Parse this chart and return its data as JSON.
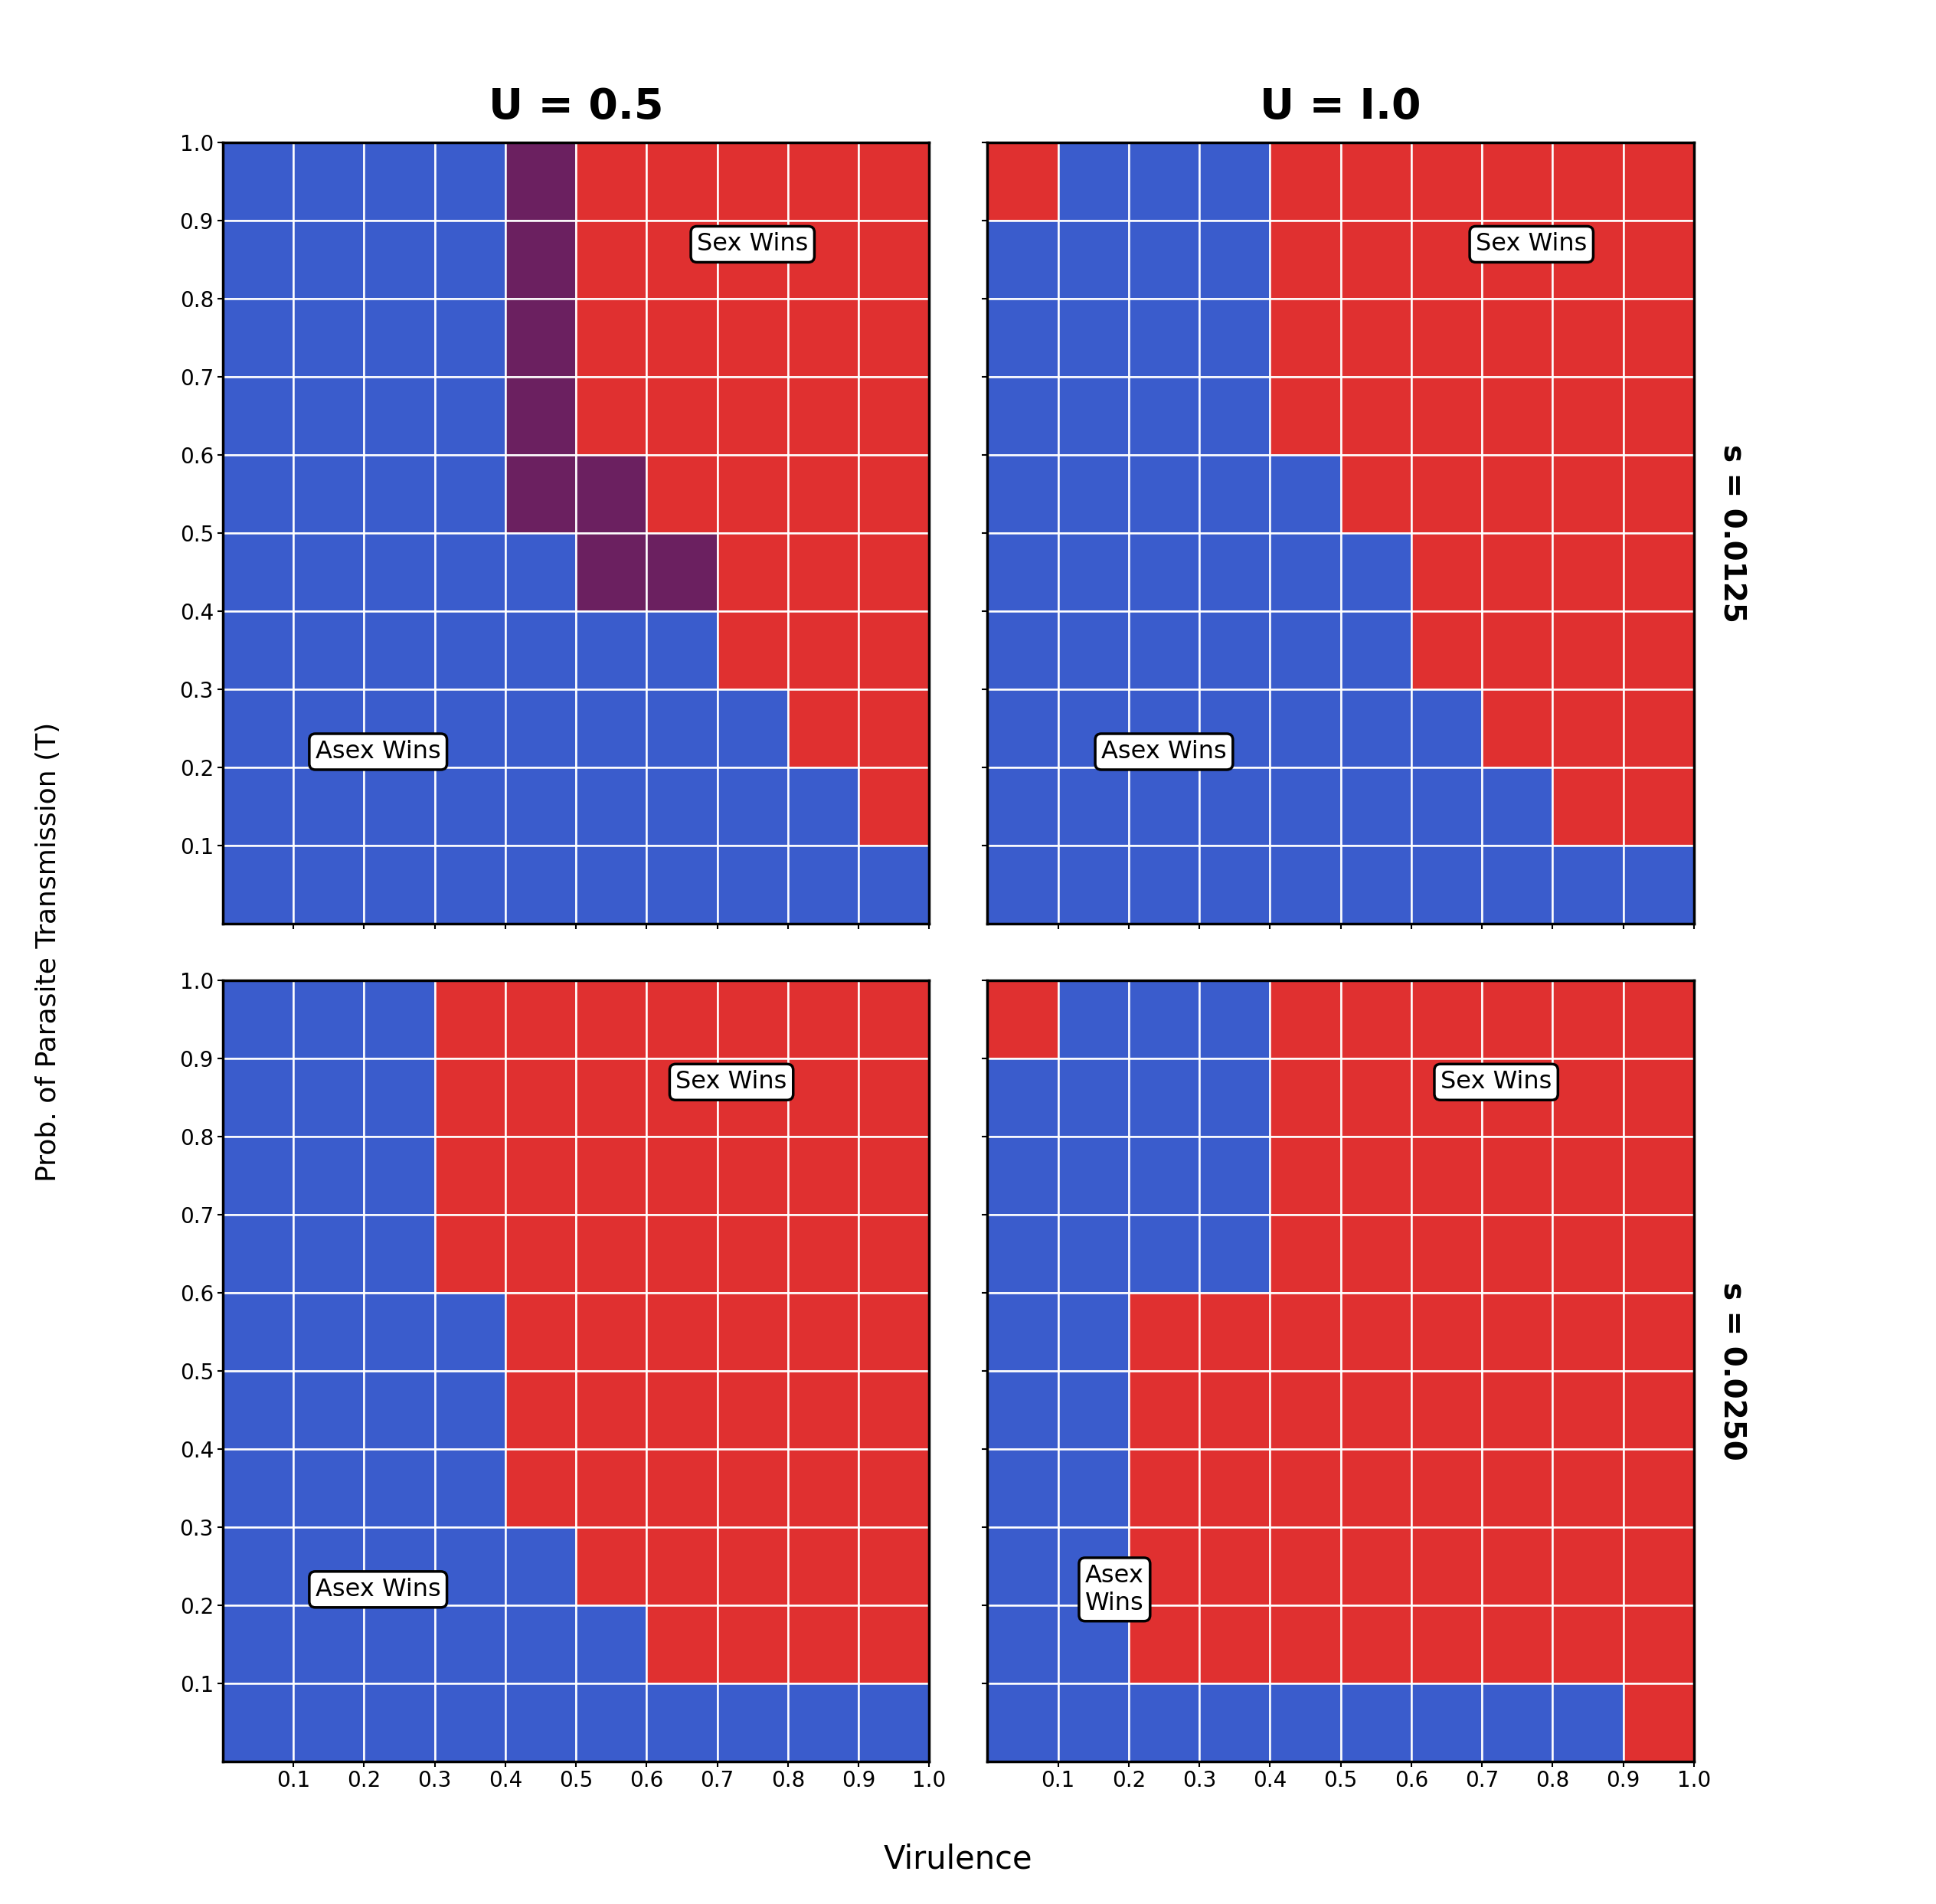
{
  "title_left": "U = 0.5",
  "title_right": "U = I.0",
  "ylabel": "Prob. of Parasite Transmission (T)",
  "xlabel": "Virulence",
  "right_label_top": "s = 0.0125",
  "right_label_bottom": "s = 0.0250",
  "color_blue": "#3a5ccc",
  "color_red": "#e03030",
  "color_purple": "#6b2060",
  "panel_TL": [
    [
      1,
      1,
      1,
      1,
      2,
      0,
      0,
      0,
      0,
      0
    ],
    [
      1,
      1,
      1,
      1,
      2,
      0,
      0,
      0,
      0,
      0
    ],
    [
      1,
      1,
      1,
      1,
      2,
      0,
      0,
      0,
      0,
      0
    ],
    [
      1,
      1,
      1,
      1,
      2,
      0,
      0,
      0,
      0,
      0
    ],
    [
      1,
      1,
      1,
      1,
      2,
      2,
      0,
      0,
      0,
      0
    ],
    [
      1,
      1,
      1,
      1,
      1,
      2,
      2,
      0,
      0,
      0
    ],
    [
      1,
      1,
      1,
      1,
      1,
      1,
      1,
      0,
      0,
      0
    ],
    [
      1,
      1,
      1,
      1,
      1,
      1,
      1,
      1,
      0,
      0
    ],
    [
      1,
      1,
      1,
      1,
      1,
      1,
      1,
      1,
      1,
      0
    ],
    [
      1,
      1,
      1,
      1,
      1,
      1,
      1,
      1,
      1,
      1
    ]
  ],
  "panel_TR": [
    [
      0,
      1,
      1,
      1,
      0,
      0,
      0,
      0,
      0,
      0
    ],
    [
      1,
      1,
      1,
      1,
      0,
      0,
      0,
      0,
      0,
      0
    ],
    [
      1,
      1,
      1,
      1,
      0,
      0,
      0,
      0,
      0,
      0
    ],
    [
      1,
      1,
      1,
      1,
      0,
      0,
      0,
      0,
      0,
      0
    ],
    [
      1,
      1,
      1,
      1,
      1,
      0,
      0,
      0,
      0,
      0
    ],
    [
      1,
      1,
      1,
      1,
      1,
      1,
      0,
      0,
      0,
      0
    ],
    [
      1,
      1,
      1,
      1,
      1,
      1,
      0,
      0,
      0,
      0
    ],
    [
      1,
      1,
      1,
      1,
      1,
      1,
      1,
      0,
      0,
      0
    ],
    [
      1,
      1,
      1,
      1,
      1,
      1,
      1,
      1,
      0,
      0
    ],
    [
      1,
      1,
      1,
      1,
      1,
      1,
      1,
      1,
      1,
      1
    ]
  ],
  "panel_BL": [
    [
      1,
      1,
      1,
      0,
      0,
      0,
      0,
      0,
      0,
      0
    ],
    [
      1,
      1,
      1,
      0,
      0,
      0,
      0,
      0,
      0,
      0
    ],
    [
      1,
      1,
      1,
      0,
      0,
      0,
      0,
      0,
      0,
      0
    ],
    [
      1,
      1,
      1,
      0,
      0,
      0,
      0,
      0,
      0,
      0
    ],
    [
      1,
      1,
      1,
      1,
      0,
      0,
      0,
      0,
      0,
      0
    ],
    [
      1,
      1,
      1,
      1,
      0,
      0,
      0,
      0,
      0,
      0
    ],
    [
      1,
      1,
      1,
      1,
      0,
      0,
      0,
      0,
      0,
      0
    ],
    [
      1,
      1,
      1,
      1,
      1,
      0,
      0,
      0,
      0,
      0
    ],
    [
      1,
      1,
      1,
      1,
      1,
      1,
      0,
      0,
      0,
      0
    ],
    [
      1,
      1,
      1,
      1,
      1,
      1,
      1,
      1,
      1,
      1
    ]
  ],
  "panel_BR": [
    [
      0,
      1,
      1,
      1,
      0,
      0,
      0,
      0,
      0,
      0
    ],
    [
      1,
      1,
      1,
      1,
      0,
      0,
      0,
      0,
      0,
      0
    ],
    [
      1,
      1,
      1,
      1,
      0,
      0,
      0,
      0,
      0,
      0
    ],
    [
      1,
      1,
      1,
      1,
      0,
      0,
      0,
      0,
      0,
      0
    ],
    [
      1,
      1,
      0,
      0,
      0,
      0,
      0,
      0,
      0,
      0
    ],
    [
      1,
      1,
      0,
      0,
      0,
      0,
      0,
      0,
      0,
      0
    ],
    [
      1,
      1,
      0,
      0,
      0,
      0,
      0,
      0,
      0,
      0
    ],
    [
      1,
      1,
      0,
      0,
      0,
      0,
      0,
      0,
      0,
      0
    ],
    [
      1,
      1,
      0,
      0,
      0,
      0,
      0,
      0,
      0,
      0
    ],
    [
      1,
      1,
      1,
      1,
      1,
      1,
      1,
      1,
      1,
      0
    ]
  ],
  "ann_TL_sex": [
    0.75,
    0.87
  ],
  "ann_TL_asex": [
    0.22,
    0.22
  ],
  "ann_TR_sex": [
    0.77,
    0.87
  ],
  "ann_TR_asex": [
    0.25,
    0.22
  ],
  "ann_BL_sex": [
    0.72,
    0.87
  ],
  "ann_BL_asex": [
    0.22,
    0.22
  ],
  "ann_BR_sex": [
    0.72,
    0.87
  ],
  "ann_BR_asex": [
    0.18,
    0.22
  ]
}
